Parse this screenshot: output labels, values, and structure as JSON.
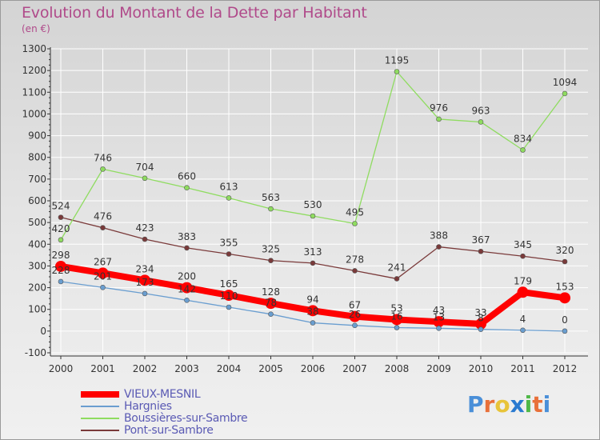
{
  "header": {
    "title": "Evolution du Montant de la Dette par Habitant",
    "subtitle": "(en €)"
  },
  "logo": {
    "text": "Proxiti",
    "letter_colors": [
      "#4a8fd8",
      "#e8703a",
      "#e8c43a",
      "#2a7ad0",
      "#4fb848",
      "#e8703a",
      "#4a8fd8"
    ]
  },
  "colors": {
    "VIEUX-MESNIL": "#ff0000",
    "Hargnies": "#6a9ed0",
    "Boussières-sur-Sambre": "#8fdc60",
    "Pont-sur-Sambre": "#7a3a3a",
    "axis": "#333333",
    "grid": "#ffffff"
  },
  "chart_data": {
    "type": "line",
    "title": "Evolution du Montant de la Dette par Habitant",
    "subtitle": "(en €)",
    "xlabel": "",
    "ylabel": "",
    "x": [
      "2000",
      "2001",
      "2002",
      "2003",
      "2004",
      "2005",
      "2006",
      "2007",
      "2008",
      "2009",
      "2010",
      "2011",
      "2012"
    ],
    "ylim": [
      -100,
      1300
    ],
    "yticks": [
      -100,
      0,
      100,
      200,
      300,
      400,
      500,
      600,
      700,
      800,
      900,
      1000,
      1100,
      1200,
      1300
    ],
    "grid": true,
    "legend_position": "bottom-left",
    "series": [
      {
        "name": "VIEUX-MESNIL",
        "values": [
          298,
          267,
          234,
          200,
          165,
          128,
          94,
          67,
          53,
          43,
          33,
          179,
          153
        ],
        "labels": [
          "298",
          "267",
          "234",
          "200",
          "165",
          "128",
          "94",
          "67",
          "53",
          "43",
          "33",
          "179",
          "153"
        ]
      },
      {
        "name": "Hargnies",
        "values": [
          228,
          201,
          173,
          142,
          110,
          78,
          38,
          26,
          16,
          13,
          8,
          4,
          0
        ],
        "labels": [
          "228",
          "201",
          "173",
          "142",
          "110",
          "78",
          "38",
          "26",
          "16",
          "13",
          "8",
          "4",
          "0"
        ]
      },
      {
        "name": "Boussières-sur-Sambre",
        "values": [
          420,
          746,
          704,
          660,
          613,
          563,
          530,
          495,
          1195,
          976,
          963,
          834,
          1094
        ],
        "labels": [
          "420",
          "746",
          "704",
          "660",
          "613",
          "563",
          "530",
          "495",
          "1195",
          "976",
          "963",
          "834",
          "1094"
        ]
      },
      {
        "name": "Pont-sur-Sambre",
        "values": [
          524,
          476,
          423,
          383,
          355,
          325,
          313,
          278,
          241,
          388,
          367,
          345,
          320
        ],
        "labels": [
          "524",
          "476",
          "423",
          "383",
          "355",
          "325",
          "313",
          "278",
          "241",
          "388",
          "367",
          "345",
          "320"
        ]
      }
    ]
  }
}
